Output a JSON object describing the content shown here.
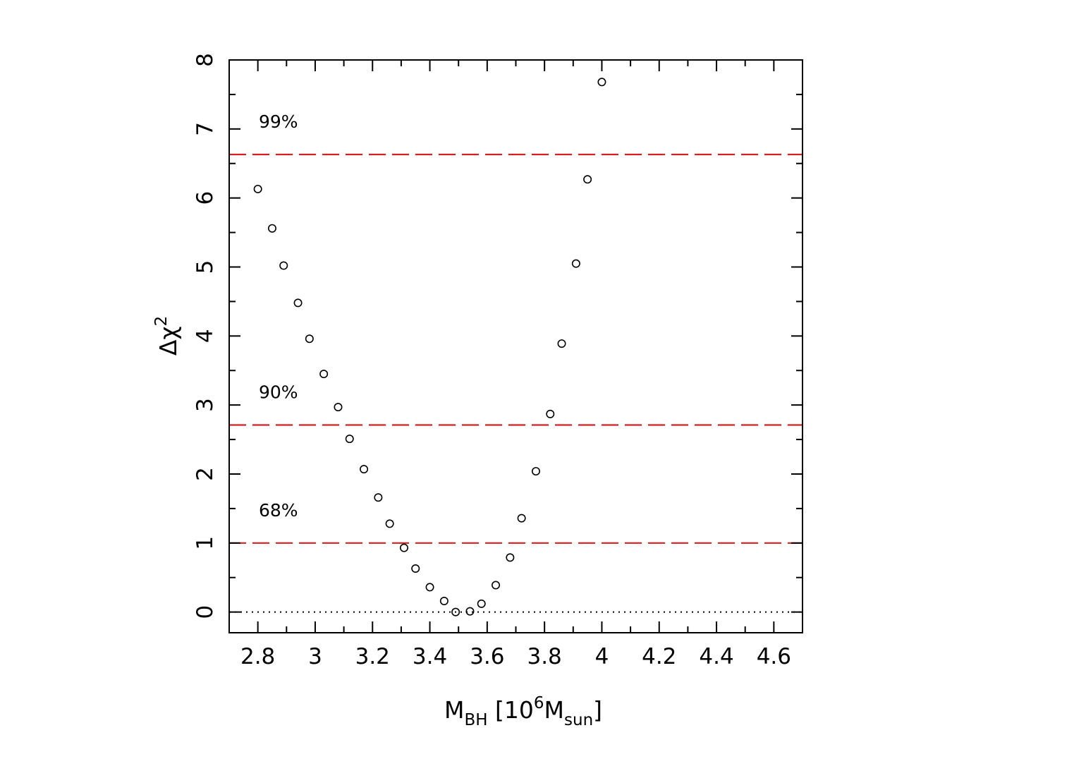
{
  "chart_data": {
    "type": "scatter",
    "xlabel": {
      "main": "M",
      "sub1": "BH",
      "bracket_open": " [10",
      "sup": "6",
      "mid": "M",
      "sub2": "sun",
      "bracket_close": "]"
    },
    "ylabel": {
      "main": "Δχ",
      "sup": "2"
    },
    "xlim": [
      2.7,
      4.7
    ],
    "ylim": [
      -0.3,
      8
    ],
    "x_ticks": [
      2.8,
      3.0,
      3.2,
      3.4,
      3.6,
      3.8,
      4.0,
      4.2,
      4.4,
      4.6
    ],
    "x_tick_labels": [
      "2.8",
      "3",
      "3.2",
      "3.4",
      "3.6",
      "3.8",
      "4",
      "4.2",
      "4.4",
      "4.6"
    ],
    "y_ticks": [
      0,
      1,
      2,
      3,
      4,
      5,
      6,
      7,
      8
    ],
    "y_tick_labels": [
      "0",
      "1",
      "2",
      "3",
      "4",
      "5",
      "6",
      "7",
      "8"
    ],
    "series": [
      {
        "marker": "open-circle",
        "x": [
          2.8,
          2.85,
          2.89,
          2.94,
          2.98,
          3.03,
          3.08,
          3.12,
          3.17,
          3.22,
          3.26,
          3.31,
          3.35,
          3.4,
          3.45,
          3.49,
          3.54,
          3.58,
          3.63,
          3.68,
          3.72,
          3.77,
          3.82,
          3.86,
          3.91,
          3.95,
          4.0
        ],
        "y": [
          6.13,
          5.56,
          5.02,
          4.48,
          3.96,
          3.45,
          2.97,
          2.51,
          2.07,
          1.66,
          1.28,
          0.93,
          0.63,
          0.36,
          0.16,
          0.0,
          0.01,
          0.12,
          0.39,
          0.79,
          1.36,
          2.04,
          2.87,
          3.89,
          5.05,
          6.27,
          7.68
        ]
      }
    ],
    "reference_lines": [
      {
        "label": "99%",
        "y": 6.63,
        "color": "#d42020",
        "style": "dashed"
      },
      {
        "label": "90%",
        "y": 2.71,
        "color": "#d42020",
        "style": "dashed"
      },
      {
        "label": "68%",
        "y": 1.0,
        "color": "#d42020",
        "style": "dashed"
      },
      {
        "label": "",
        "y": 0,
        "color": "#000000",
        "style": "dotted"
      }
    ],
    "grid": false
  }
}
